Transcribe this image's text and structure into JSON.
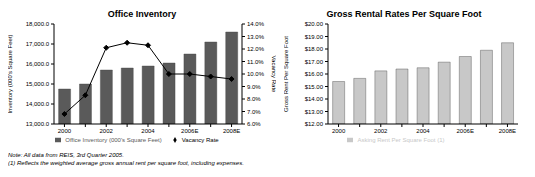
{
  "chart_data": [
    {
      "type": "bar",
      "title": "Office Inventory",
      "categories": [
        "2000",
        null,
        "2002",
        null,
        "2004",
        null,
        "2006E",
        null,
        "2008E"
      ],
      "series": [
        {
          "name": "Office Inventory (000's Square Feet)",
          "type": "bar",
          "color": "#5a5a5a",
          "values": [
            14750,
            15000,
            15700,
            15800,
            15900,
            16050,
            16500,
            17100,
            17600
          ]
        },
        {
          "name": "Vacancy Rate",
          "type": "line",
          "color": "#000000",
          "marker": "diamond",
          "axis": "y2",
          "values": [
            6.8,
            8.3,
            12.1,
            12.5,
            12.3,
            10.0,
            10.0,
            9.8,
            9.6
          ]
        }
      ],
      "y_label": "Inventory (000's Square Feet)",
      "y2_label": "Vacancy Rate",
      "ylim": [
        13000,
        18000
      ],
      "yticks": [
        {
          "value": 13000,
          "label": "13,000.0"
        },
        {
          "value": 14000,
          "label": "14,000.0"
        },
        {
          "value": 15000,
          "label": "15,000.0"
        },
        {
          "value": 16000,
          "label": "16,000.0"
        },
        {
          "value": 17000,
          "label": "17,000.0"
        },
        {
          "value": 18000,
          "label": "18,000.0"
        }
      ],
      "y2lim": [
        6,
        14
      ],
      "y2ticks": [
        {
          "value": 6,
          "label": "6.0%"
        },
        {
          "value": 7,
          "label": "7.0%"
        },
        {
          "value": 8,
          "label": "8.0%"
        },
        {
          "value": 9,
          "label": "9.0%"
        },
        {
          "value": 10,
          "label": "10.0%"
        },
        {
          "value": 11,
          "label": "11.0%"
        },
        {
          "value": 12,
          "label": "12.0%"
        },
        {
          "value": 13,
          "label": "13.0%"
        },
        {
          "value": 14,
          "label": "14.0%"
        }
      ],
      "legend": "bottom"
    },
    {
      "type": "bar",
      "title": "Gross Rental Rates Per Square Foot",
      "categories": [
        "2000",
        null,
        "2002",
        null,
        "2004",
        null,
        "2006E",
        null,
        "2008E"
      ],
      "series": [
        {
          "name": "Asking Rent Per Square Foot (1)",
          "color": "#c8c8c8",
          "values": [
            15.4,
            15.65,
            16.25,
            16.4,
            16.5,
            16.95,
            17.4,
            17.9,
            18.5
          ]
        }
      ],
      "y_label": "Gross Rent Per Square Foot",
      "ylim": [
        12,
        20
      ],
      "yticks": [
        {
          "value": 12,
          "label": "$12.00"
        },
        {
          "value": 13,
          "label": "$13.00"
        },
        {
          "value": 14,
          "label": "$14.00"
        },
        {
          "value": 15,
          "label": "$15.00"
        },
        {
          "value": 16,
          "label": "$16.00"
        },
        {
          "value": 17,
          "label": "$17.00"
        },
        {
          "value": 18,
          "label": "$18.00"
        },
        {
          "value": 19,
          "label": "$19.00"
        },
        {
          "value": 20,
          "label": "$20.00"
        }
      ],
      "legend": "bottom"
    }
  ],
  "notes": [
    "Note: All data from REIS, 3rd Quarter 2005.",
    "(1) Reflects the weighted average gross annual rent per square foot, including expenses."
  ]
}
